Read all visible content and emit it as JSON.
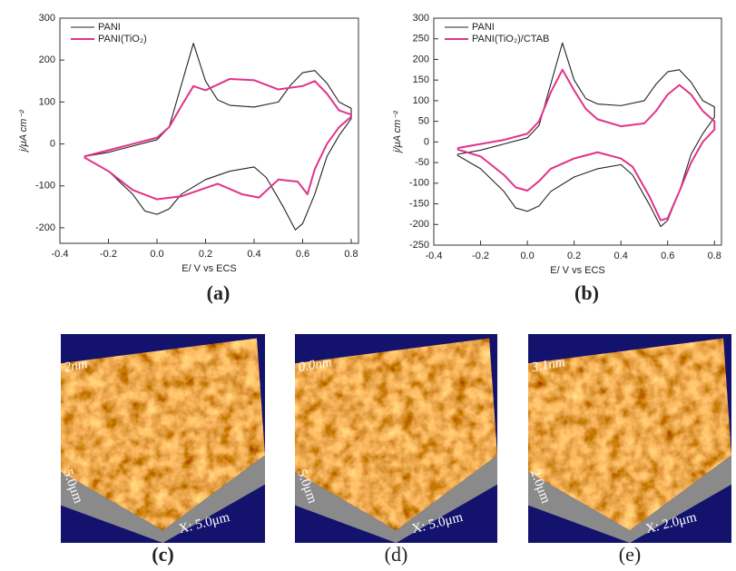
{
  "chart_data": [
    {
      "type": "line",
      "caption": "(a)",
      "x_label": "E/ V vs ECS",
      "y_label": "j/μA cm⁻²",
      "legend": "upper left",
      "xlim": [
        -0.4,
        0.83
      ],
      "xticks": [
        -0.4,
        -0.2,
        {
          "value": 0,
          "label": "0.0"
        },
        0.2,
        0.4,
        0.6,
        0.8
      ],
      "ylim": [
        -237,
        300
      ],
      "yticks": [
        -200,
        -100,
        0,
        100,
        200,
        300
      ],
      "series": [
        {
          "name": "PANI",
          "color": "#222222",
          "x": [
            -0.3,
            -0.2,
            -0.1,
            0,
            0.05,
            0.1,
            0.15,
            0.2,
            0.25,
            0.3,
            0.4,
            0.5,
            0.55,
            0.6,
            0.65,
            0.7,
            0.75,
            0.8,
            0.8,
            0.75,
            0.7,
            0.65,
            0.6,
            0.57,
            0.52,
            0.45,
            0.4,
            0.3,
            0.2,
            0.1,
            0.05,
            0,
            -0.05,
            -0.1,
            -0.2,
            -0.3
          ],
          "values": [
            -30,
            -20,
            -5,
            10,
            40,
            140,
            240,
            150,
            105,
            92,
            88,
            100,
            140,
            170,
            175,
            145,
            100,
            85,
            60,
            20,
            -30,
            -120,
            -190,
            -205,
            -150,
            -80,
            -55,
            -65,
            -85,
            -120,
            -155,
            -168,
            -160,
            -120,
            -65,
            -32
          ]
        },
        {
          "name": "PANI(TiO₂)",
          "color": "#e0338a",
          "x": [
            -0.3,
            -0.2,
            -0.1,
            0,
            0.05,
            0.1,
            0.15,
            0.2,
            0.3,
            0.4,
            0.5,
            0.6,
            0.65,
            0.7,
            0.75,
            0.8,
            0.8,
            0.75,
            0.7,
            0.65,
            0.62,
            0.58,
            0.5,
            0.42,
            0.35,
            0.25,
            0.2,
            0.1,
            0,
            -0.1,
            -0.2,
            -0.3
          ],
          "values": [
            -30,
            -15,
            0,
            15,
            40,
            90,
            138,
            128,
            155,
            152,
            130,
            138,
            150,
            120,
            80,
            70,
            65,
            40,
            0,
            -60,
            -120,
            -90,
            -85,
            -128,
            -120,
            -95,
            -105,
            -125,
            -132,
            -110,
            -65,
            -32
          ]
        }
      ]
    },
    {
      "type": "line",
      "caption": "(b)",
      "x_label": "E/ V vs ECS",
      "y_label": "j/μA cm⁻²",
      "legend": "upper left",
      "xlim": [
        -0.4,
        0.83
      ],
      "xticks": [
        -0.4,
        -0.2,
        {
          "value": 0,
          "label": "0.0"
        },
        0.2,
        0.4,
        0.6,
        0.8
      ],
      "ylim": [
        -250,
        300
      ],
      "yticks": [
        -250,
        -200,
        -150,
        -100,
        -50,
        0,
        50,
        100,
        150,
        200,
        250,
        300
      ],
      "series": [
        {
          "name": "PANI",
          "color": "#222222",
          "x": [
            -0.3,
            -0.2,
            -0.1,
            0,
            0.05,
            0.1,
            0.15,
            0.2,
            0.25,
            0.3,
            0.4,
            0.5,
            0.55,
            0.6,
            0.65,
            0.7,
            0.75,
            0.8,
            0.8,
            0.75,
            0.7,
            0.65,
            0.6,
            0.57,
            0.52,
            0.45,
            0.4,
            0.3,
            0.2,
            0.1,
            0.05,
            0,
            -0.05,
            -0.1,
            -0.2,
            -0.3
          ],
          "values": [
            -30,
            -20,
            -5,
            10,
            40,
            140,
            240,
            150,
            105,
            92,
            88,
            100,
            140,
            170,
            175,
            145,
            100,
            85,
            60,
            20,
            -30,
            -120,
            -190,
            -205,
            -150,
            -80,
            -55,
            -65,
            -85,
            -120,
            -155,
            -168,
            -160,
            -120,
            -65,
            -32
          ]
        },
        {
          "name": "PANI(TiO₂)/CTAB",
          "color": "#e0338a",
          "x": [
            -0.3,
            -0.2,
            -0.1,
            0,
            0.05,
            0.1,
            0.15,
            0.2,
            0.25,
            0.3,
            0.4,
            0.5,
            0.55,
            0.6,
            0.65,
            0.7,
            0.75,
            0.8,
            0.8,
            0.75,
            0.7,
            0.65,
            0.6,
            0.57,
            0.52,
            0.45,
            0.4,
            0.3,
            0.2,
            0.1,
            0.05,
            0,
            -0.05,
            -0.1,
            -0.2,
            -0.3
          ],
          "values": [
            -15,
            -5,
            5,
            20,
            50,
            120,
            175,
            125,
            80,
            55,
            38,
            45,
            75,
            115,
            138,
            115,
            75,
            50,
            30,
            0,
            -50,
            -120,
            -185,
            -190,
            -130,
            -60,
            -40,
            -25,
            -40,
            -65,
            -95,
            -118,
            -110,
            -80,
            -35,
            -18
          ]
        }
      ]
    }
  ],
  "images": [
    {
      "caption": "(c)",
      "height_text": "2nm",
      "y_text": "5.0μm",
      "x_text": "X: 5.0μm"
    },
    {
      "caption": "(d)",
      "height_text": "0.0nm",
      "y_text": "5.0μm",
      "x_text": "X: 5.0μm"
    },
    {
      "caption": "(e)",
      "height_text": "3.1nm",
      "y_text": "2.0μm",
      "x_text": "X: 2.0μm"
    }
  ]
}
